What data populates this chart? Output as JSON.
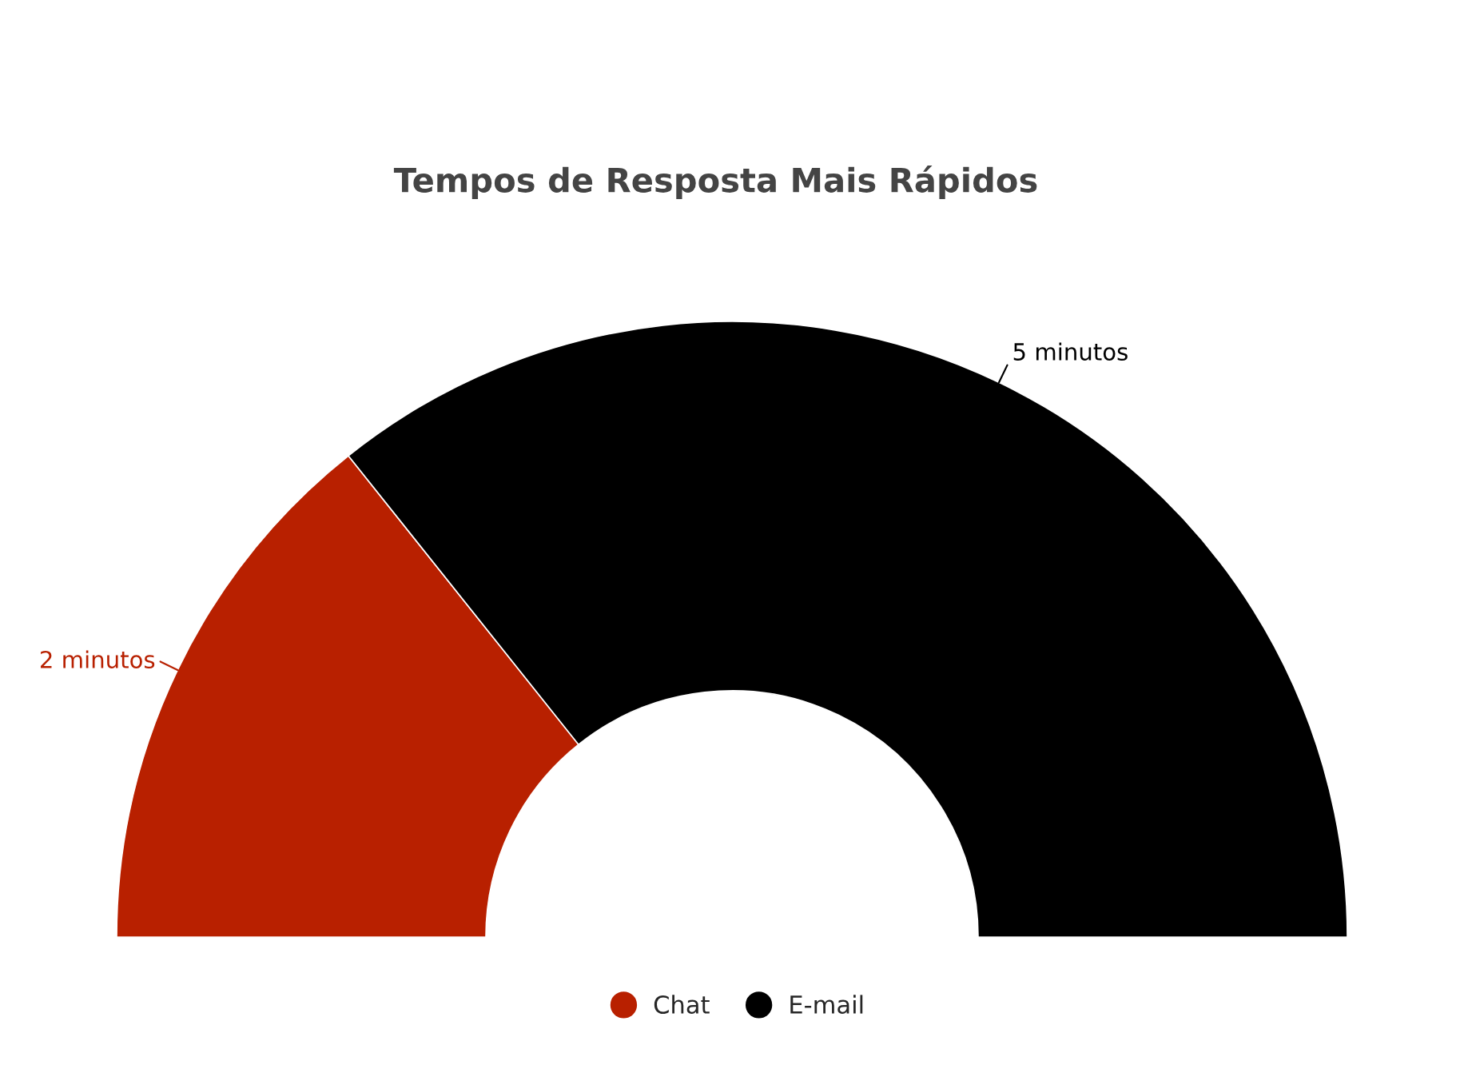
{
  "chart_data": {
    "type": "donut",
    "title": "Tempos de Resposta Mais Rápidos",
    "categories": [
      "Chat",
      "E-mail"
    ],
    "values": [
      2,
      5
    ],
    "colors": [
      "#b82000",
      "#000000"
    ],
    "value_labels": [
      "2 minutos",
      "5 minutos"
    ],
    "legend": "bottom"
  }
}
